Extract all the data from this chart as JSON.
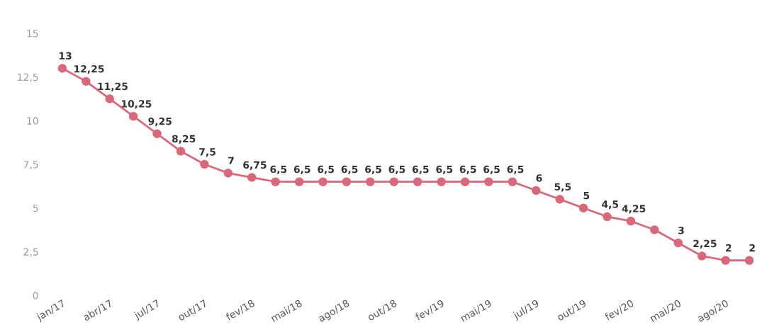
{
  "chart_data": {
    "type": "line",
    "categories": [
      "jan/17",
      null,
      "abr/17",
      null,
      "jul/17",
      null,
      "out/17",
      null,
      "fev/18",
      null,
      "mai/18",
      null,
      "ago/18",
      null,
      "out/18",
      null,
      "fev/19",
      null,
      "mai/19",
      null,
      "jul/19",
      null,
      "out/19",
      null,
      "fev/20",
      null,
      "mai/20",
      null,
      "ago/20",
      null
    ],
    "series": [
      {
        "color": "#d9687a",
        "values": [
          13,
          12.25,
          11.25,
          10.25,
          9.25,
          8.25,
          7.5,
          7,
          6.75,
          6.5,
          6.5,
          6.5,
          6.5,
          6.5,
          6.5,
          6.5,
          6.5,
          6.5,
          6.5,
          6.5,
          6,
          5.5,
          5,
          4.5,
          4.25,
          3.75,
          3,
          2.25,
          2,
          2
        ],
        "value_labels": [
          "13",
          "12,25",
          "11,25",
          "10,25",
          "9,25",
          "8,25",
          "7,5",
          "7",
          "6,75",
          "6,5",
          "6,5",
          "6,5",
          "6,5",
          "6,5",
          "6,5",
          "6,5",
          "6,5",
          "6,5",
          "6,5",
          "6,5",
          "6",
          "5,5",
          "5",
          "4,5",
          "4,25",
          null,
          "3",
          "2,25",
          "2",
          "2"
        ]
      }
    ],
    "ylim": [
      0,
      15
    ],
    "yticks": [
      0,
      {
        "value": 2.5,
        "label": "2,5"
      },
      5,
      {
        "value": 7.5,
        "label": "7,5"
      },
      10,
      {
        "value": 12.5,
        "label": "12,5"
      },
      15
    ],
    "marker": "circle",
    "line_style": "solid",
    "grid": false,
    "legend": false
  }
}
